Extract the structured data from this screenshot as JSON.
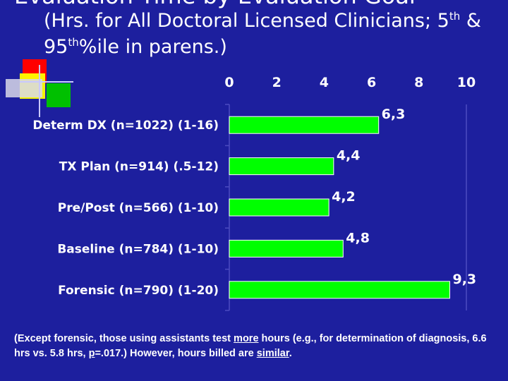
{
  "title": {
    "line1": "Evaluation Time by Evaluation Goal",
    "line2_a": "(Hrs. for All Doctoral Licensed Clinicians; 5",
    "line2_sup1": "th",
    "line2_b": " &",
    "line3_a": "95",
    "line3_sup": "th",
    "line3_b": "%ile in parens.)"
  },
  "colors": {
    "background": "#1d1f9e",
    "bar_fill": "#00ff00",
    "bar_stroke": "#ffffff",
    "text": "#ffffff"
  },
  "chart_data": {
    "type": "bar",
    "orientation": "horizontal",
    "xlim": [
      0,
      10
    ],
    "x_ticks": [
      "0",
      "2",
      "4",
      "6",
      "8",
      "10"
    ],
    "x_tick_values": [
      0,
      2,
      4,
      6,
      8,
      10
    ],
    "axis_position": "top",
    "grid": false,
    "categories": [
      "Determ DX (n=1022) (1-16)",
      "TX Plan (n=914) (.5-12)",
      "Pre/Post (n=566) (1-10)",
      "Baseline (n=784) (1-10)",
      "Forensic (n=790) (1-20)"
    ],
    "values": [
      6.3,
      4.4,
      4.2,
      4.8,
      9.3
    ],
    "data_labels": [
      "6,3",
      "4,4",
      "4,2",
      "4,8",
      "9,3"
    ]
  },
  "footnote": {
    "part1": "(Except forensic, those using assistants test ",
    "emph1": "more",
    "part2": " hours (e.g., for determination of diagnosis, 6.6 hrs vs. 5.8 hrs, ",
    "emph2": "p",
    "part3": "=.017.)  However, hours billed are ",
    "emph3": "similar",
    "part4": "."
  }
}
